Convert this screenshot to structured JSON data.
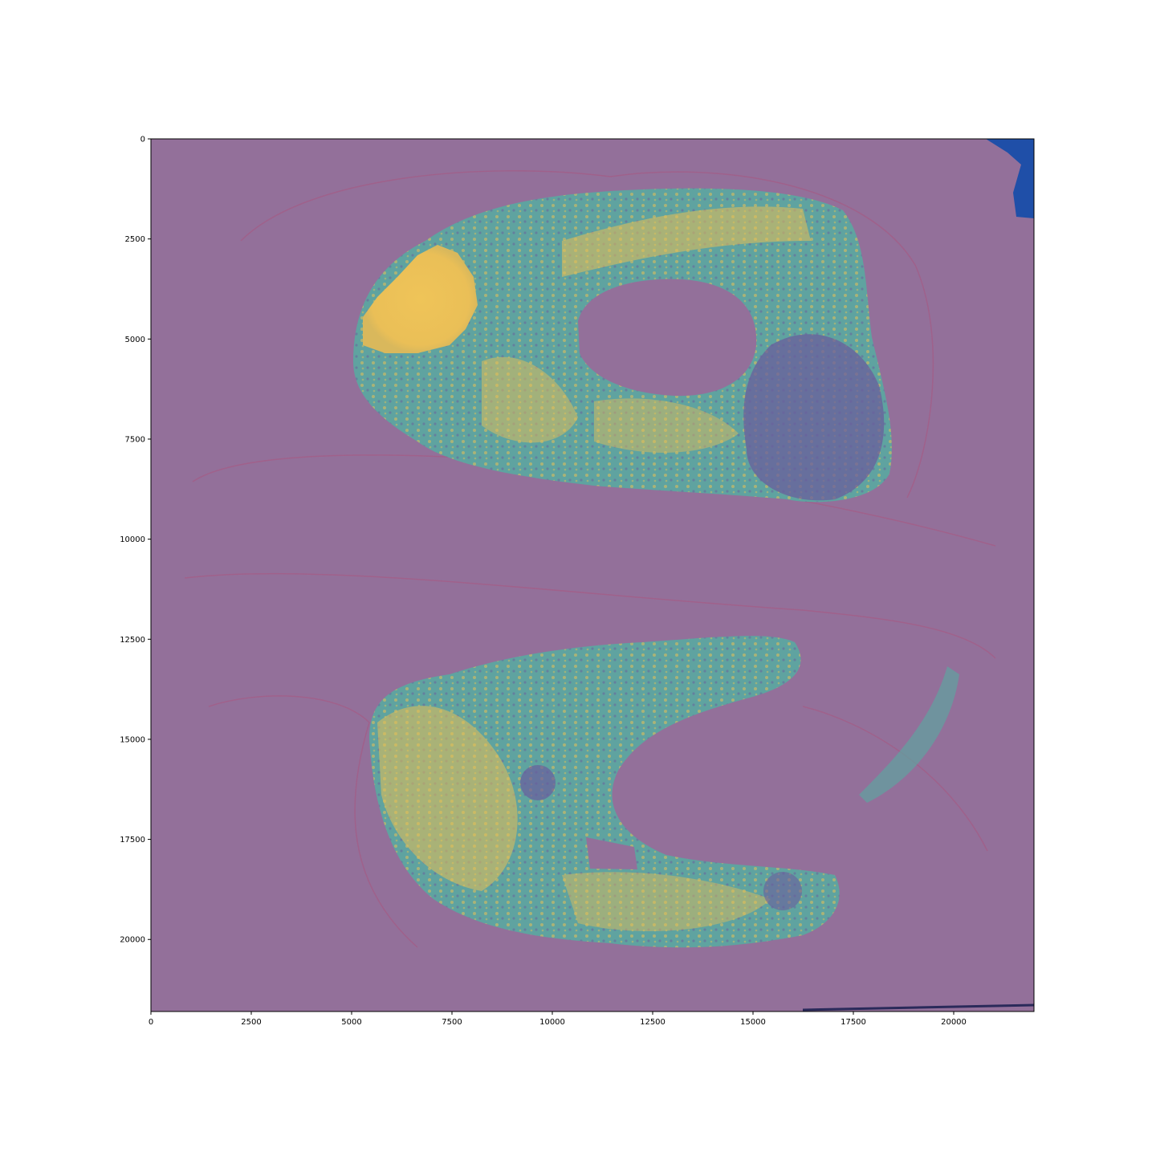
{
  "chart_data": {
    "type": "heatmap",
    "title": "",
    "xlabel": "",
    "ylabel": "",
    "xlim": [
      0,
      22000
    ],
    "ylim": [
      21800,
      0
    ],
    "x_ticks": [
      {
        "value": 0,
        "label": "0"
      },
      {
        "value": 2500,
        "label": "2500"
      },
      {
        "value": 5000,
        "label": "5000"
      },
      {
        "value": 7500,
        "label": "7500"
      },
      {
        "value": 10000,
        "label": "10000"
      },
      {
        "value": 12500,
        "label": "12500"
      },
      {
        "value": 15000,
        "label": "15000"
      },
      {
        "value": 17500,
        "label": "17500"
      },
      {
        "value": 20000,
        "label": "20000"
      }
    ],
    "y_ticks": [
      {
        "value": 0,
        "label": "0"
      },
      {
        "value": 2500,
        "label": "2500"
      },
      {
        "value": 5000,
        "label": "5000"
      },
      {
        "value": 7500,
        "label": "7500"
      },
      {
        "value": 10000,
        "label": "10000"
      },
      {
        "value": 12500,
        "label": "12500"
      },
      {
        "value": 15000,
        "label": "15000"
      },
      {
        "value": 17500,
        "label": "17500"
      },
      {
        "value": 20000,
        "label": "20000"
      }
    ],
    "grid": false,
    "colormap": "viridis",
    "colors": {
      "background": "#93709a",
      "low": "#6a5d9c",
      "mid": "#5fa3a0",
      "high": "#e6bf55",
      "tissue_edge": "#b0507a",
      "corner_region": "#1f4fa8"
    }
  }
}
